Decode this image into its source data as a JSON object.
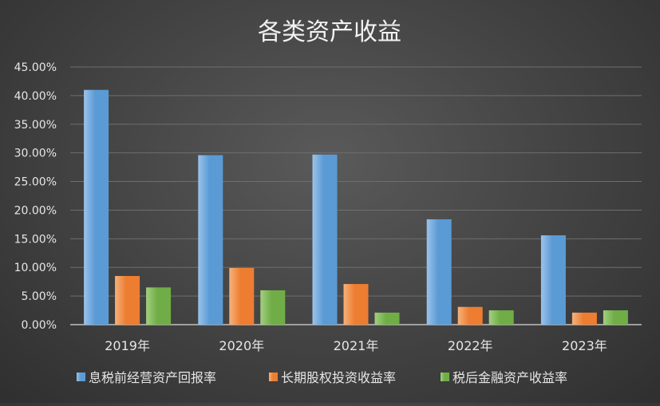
{
  "chart_data": {
    "type": "bar",
    "title": "各类资产收益",
    "xlabel": "",
    "ylabel": "",
    "categories": [
      "2019年",
      "2020年",
      "2021年",
      "2022年",
      "2023年"
    ],
    "series": [
      {
        "name": "息税前经营资产回报率",
        "values": [
          41.0,
          29.6,
          29.7,
          18.4,
          15.6
        ]
      },
      {
        "name": "长期股权投资收益率",
        "values": [
          8.5,
          9.9,
          7.1,
          3.1,
          2.1
        ]
      },
      {
        "name": "税后金融资产收益率",
        "values": [
          6.5,
          6.0,
          2.1,
          2.5,
          2.5
        ]
      }
    ],
    "ylim": [
      0,
      45
    ],
    "yticks": [
      "0.00%",
      "5.00%",
      "10.00%",
      "15.00%",
      "20.00%",
      "25.00%",
      "30.00%",
      "35.00%",
      "40.00%",
      "45.00%"
    ],
    "ytick_values": [
      0,
      5,
      10,
      15,
      20,
      25,
      30,
      35,
      40,
      45
    ],
    "grid": true,
    "legend_position": "bottom",
    "colors": [
      "#5b9bd5",
      "#ed7d31",
      "#70ad47"
    ],
    "colors_light": [
      "#9cc3ea",
      "#f6b27a",
      "#a3d07f"
    ]
  }
}
